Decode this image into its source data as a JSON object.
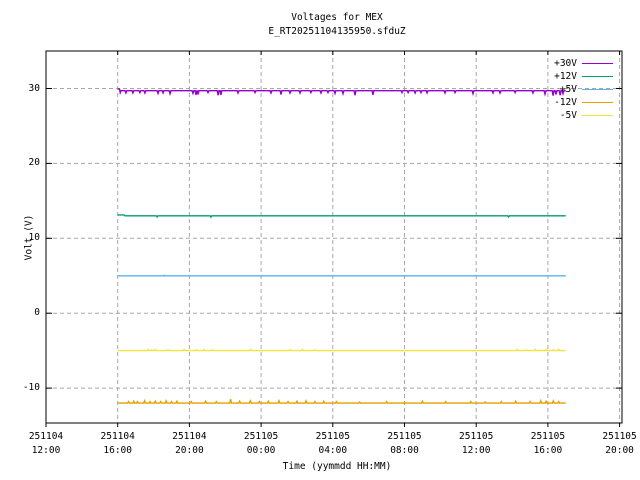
{
  "title": {
    "line1": "Voltages for MEX",
    "line2": "E_RT20251104135950.sfduZ"
  },
  "axes": {
    "ylabel": "Volt (V)",
    "xlabel": "Time (yymmdd HH:MM)",
    "yticks": [
      {
        "label": "30",
        "value": 30
      },
      {
        "label": "20",
        "value": 20
      },
      {
        "label": "10",
        "value": 10
      },
      {
        "label": "0",
        "value": 0
      },
      {
        "label": "-10",
        "value": -10
      }
    ],
    "xticks": [
      {
        "date": "251104",
        "time": "12:00",
        "hour": 12
      },
      {
        "date": "251104",
        "time": "16:00",
        "hour": 16
      },
      {
        "date": "251104",
        "time": "20:00",
        "hour": 20
      },
      {
        "date": "251105",
        "time": "00:00",
        "hour": 24
      },
      {
        "date": "251105",
        "time": "04:00",
        "hour": 28
      },
      {
        "date": "251105",
        "time": "08:00",
        "hour": 32
      },
      {
        "date": "251105",
        "time": "12:00",
        "hour": 36
      },
      {
        "date": "251105",
        "time": "16:00",
        "hour": 40
      },
      {
        "date": "251105",
        "time": "20:00",
        "hour": 44
      }
    ]
  },
  "legend": [
    {
      "label": "+30V",
      "color": "#9400D3"
    },
    {
      "label": "+12V",
      "color": "#009E73"
    },
    {
      "label": "+5V",
      "color": "#56B4E9"
    },
    {
      "label": "-12V",
      "color": "#E69F00"
    },
    {
      "label": "-5V",
      "color": "#F0E442"
    }
  ],
  "colors": {
    "background": "#ffffff",
    "border": "#000000",
    "grid": "#a8a8a8",
    "text": "#000000"
  },
  "chart_data": {
    "type": "line",
    "title": "Voltages for MEX",
    "subtitle": "E_RT20251104135950.sfduZ",
    "xlabel": "Time (yymmdd HH:MM)",
    "ylabel": "Volt (V)",
    "x_unit": "hours since 251104 00:00",
    "xlim": [
      12,
      44.13
    ],
    "ylim": [
      -14.7,
      35
    ],
    "x_tick_hours": [
      12,
      16,
      20,
      24,
      28,
      32,
      36,
      40,
      44
    ],
    "y_tick_values": [
      30,
      20,
      10,
      0,
      -10
    ],
    "grid": true,
    "legend_position": "top-right-inside",
    "data_start_hour": 16.0,
    "data_end_hour": 41.0,
    "series": [
      {
        "name": "+30V",
        "color": "#9400D3",
        "base": 29.7,
        "start_points": [
          [
            16.0,
            29.95
          ],
          [
            16.1,
            29.95
          ],
          [
            16.14,
            29.45
          ],
          [
            16.18,
            29.7
          ]
        ],
        "spikes": [
          [
            16.46,
            -0.3
          ],
          [
            16.85,
            -0.3
          ],
          [
            17.24,
            -0.25
          ],
          [
            17.52,
            -0.3
          ],
          [
            18.25,
            -0.35
          ],
          [
            18.53,
            -0.3
          ],
          [
            18.92,
            -0.4
          ],
          [
            20.2,
            -0.35
          ],
          [
            20.37,
            -0.55
          ],
          [
            20.48,
            -0.5
          ],
          [
            21.04,
            -0.25
          ],
          [
            21.6,
            -0.6
          ],
          [
            21.76,
            -0.55
          ],
          [
            22.71,
            -0.3
          ],
          [
            23.66,
            -0.25
          ],
          [
            24.55,
            -0.3
          ],
          [
            25.11,
            -0.5
          ],
          [
            25.61,
            -0.3
          ],
          [
            26.17,
            -0.3
          ],
          [
            26.78,
            -0.25
          ],
          [
            27.34,
            -0.3
          ],
          [
            27.73,
            -0.25
          ],
          [
            28.12,
            -0.35
          ],
          [
            28.57,
            -0.4
          ],
          [
            29.24,
            -0.6
          ],
          [
            30.24,
            -0.55
          ],
          [
            31.86,
            -0.25
          ],
          [
            32.2,
            -0.25
          ],
          [
            32.59,
            -0.3
          ],
          [
            32.92,
            -0.25
          ],
          [
            33.26,
            -0.3
          ],
          [
            34.26,
            -0.3
          ],
          [
            34.82,
            -0.25
          ],
          [
            35.82,
            -0.4
          ],
          [
            36.94,
            -0.3
          ],
          [
            37.33,
            -0.3
          ],
          [
            38.17,
            -0.25
          ],
          [
            39.17,
            -0.3
          ],
          [
            39.84,
            -0.45
          ],
          [
            40.29,
            -0.65
          ],
          [
            40.45,
            -0.5
          ],
          [
            40.68,
            -0.6
          ],
          [
            40.84,
            -0.4
          ]
        ]
      },
      {
        "name": "+12V",
        "color": "#009E73",
        "base": 13.0,
        "start_points": [
          [
            16.0,
            13.12
          ],
          [
            16.35,
            13.12
          ],
          [
            16.4,
            13.0
          ]
        ],
        "spikes": [
          [
            18.2,
            -0.15
          ],
          [
            21.2,
            -0.18
          ],
          [
            37.8,
            -0.15
          ]
        ]
      },
      {
        "name": "+5V",
        "color": "#56B4E9",
        "base": 5.0,
        "start_points": [
          [
            16.0,
            5.0
          ]
        ],
        "spikes": [
          [
            18.6,
            0.08
          ]
        ]
      },
      {
        "name": "-12V",
        "color": "#E69F00",
        "base": -12.0,
        "start_points": [
          [
            16.0,
            -12.0
          ]
        ],
        "spikes": [
          [
            16.6,
            0.2
          ],
          [
            16.9,
            0.25
          ],
          [
            17.1,
            0.2
          ],
          [
            17.5,
            0.3
          ],
          [
            17.8,
            0.2
          ],
          [
            18.1,
            0.25
          ],
          [
            18.4,
            0.2
          ],
          [
            18.7,
            0.3
          ],
          [
            19.0,
            0.2
          ],
          [
            19.3,
            0.25
          ],
          [
            20.1,
            0.2
          ],
          [
            20.9,
            0.25
          ],
          [
            21.5,
            0.2
          ],
          [
            22.3,
            0.5
          ],
          [
            22.8,
            0.25
          ],
          [
            23.4,
            0.3
          ],
          [
            23.9,
            0.2
          ],
          [
            24.4,
            0.25
          ],
          [
            25.0,
            0.3
          ],
          [
            25.5,
            0.2
          ],
          [
            26.0,
            0.25
          ],
          [
            26.5,
            0.3
          ],
          [
            27.0,
            0.2
          ],
          [
            27.5,
            0.25
          ],
          [
            28.2,
            0.2
          ],
          [
            29.5,
            0.15
          ],
          [
            31.0,
            0.2
          ],
          [
            32.0,
            0.15
          ],
          [
            33.0,
            0.25
          ],
          [
            34.3,
            0.2
          ],
          [
            35.7,
            0.2
          ],
          [
            36.5,
            0.15
          ],
          [
            37.4,
            0.2
          ],
          [
            38.2,
            0.25
          ],
          [
            39.0,
            0.2
          ],
          [
            39.6,
            0.3
          ],
          [
            39.9,
            0.25
          ],
          [
            40.3,
            0.3
          ],
          [
            40.6,
            0.2
          ]
        ]
      },
      {
        "name": "-5V",
        "color": "#F0E442",
        "base": -5.0,
        "start_points": [
          [
            16.0,
            -5.0
          ]
        ],
        "spikes": [
          [
            17.7,
            0.15
          ],
          [
            17.9,
            0.12
          ],
          [
            18.1,
            0.15
          ],
          [
            18.8,
            0.12
          ],
          [
            19.7,
            0.15
          ],
          [
            20.4,
            0.12
          ],
          [
            20.8,
            0.15
          ],
          [
            21.3,
            0.12
          ],
          [
            23.4,
            0.15
          ],
          [
            25.6,
            0.12
          ],
          [
            26.3,
            0.15
          ],
          [
            27.0,
            0.12
          ],
          [
            38.3,
            0.15
          ],
          [
            38.8,
            0.12
          ],
          [
            39.3,
            0.18
          ],
          [
            39.9,
            0.15
          ],
          [
            40.3,
            0.12
          ],
          [
            40.6,
            0.15
          ]
        ]
      }
    ]
  }
}
